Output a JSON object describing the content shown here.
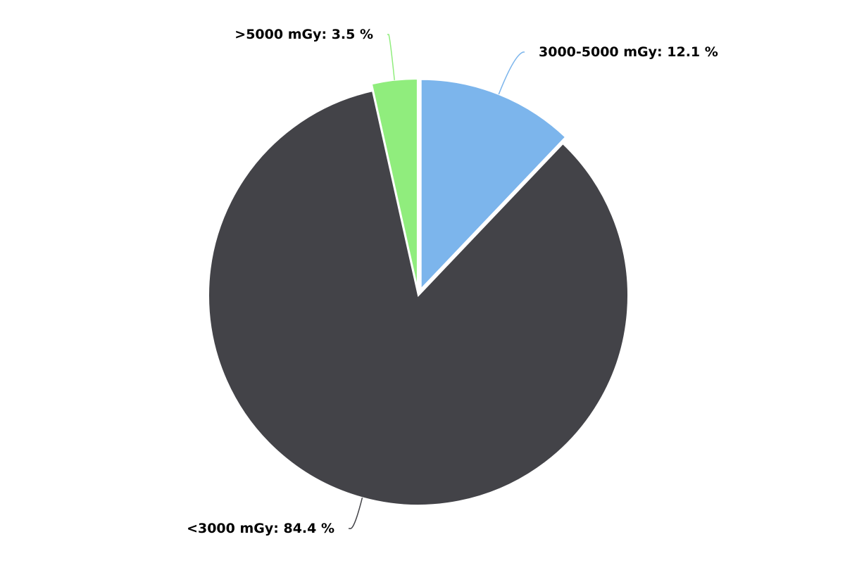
{
  "chart_data": {
    "type": "pie",
    "title": "",
    "legend": "none",
    "data_label_format": "{name}: {value} %",
    "slices": [
      {
        "name": "3000-5000 mGy",
        "value": 12.1,
        "color": "#7cb5ec",
        "sliced": true
      },
      {
        "name": "<3000 mGy",
        "value": 84.4,
        "color": "#434348",
        "sliced": false
      },
      {
        "name": ">5000 mGy",
        "value": 3.5,
        "color": "#90ed7d",
        "sliced": true
      }
    ]
  }
}
